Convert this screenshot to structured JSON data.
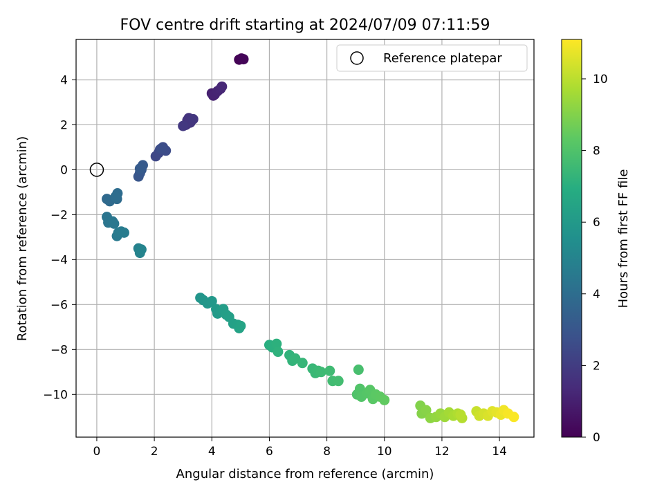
{
  "chart_data": {
    "type": "scatter",
    "title": "FOV centre drift starting at 2024/07/09 07:11:59",
    "xlabel": "Angular distance from reference (arcmin)",
    "ylabel": "Rotation from reference (arcmin)",
    "xlim": [
      -0.72,
      15.2
    ],
    "ylim": [
      -11.9,
      5.8
    ],
    "xticks": [
      "0",
      "2",
      "4",
      "6",
      "8",
      "10",
      "12",
      "14"
    ],
    "yticks": [
      "4",
      "2",
      "0",
      "−2",
      "−4",
      "−6",
      "−8",
      "−10"
    ],
    "grid": true,
    "legend": {
      "position": "top-right",
      "entries": [
        "Reference platepar"
      ]
    },
    "reference_point": {
      "x": 0,
      "y": 0
    },
    "colorbar": {
      "label": "Hours from first FF file",
      "range": [
        0,
        11.1
      ],
      "ticks": [
        "0",
        "2",
        "4",
        "6",
        "8",
        "10"
      ],
      "colormap": [
        "#440154",
        "#472c7a",
        "#3b518b",
        "#2c718e",
        "#21908d",
        "#27ad81",
        "#5cc863",
        "#aadc32",
        "#fde725"
      ]
    },
    "points": [
      {
        "x": 4.95,
        "y": 4.9,
        "h": 0.05
      },
      {
        "x": 5.03,
        "y": 4.95,
        "h": 0.1
      },
      {
        "x": 5.1,
        "y": 4.92,
        "h": 0.15
      },
      {
        "x": 4.0,
        "y": 3.4,
        "h": 1.0
      },
      {
        "x": 4.05,
        "y": 3.3,
        "h": 1.05
      },
      {
        "x": 4.1,
        "y": 3.35,
        "h": 1.1
      },
      {
        "x": 4.2,
        "y": 3.5,
        "h": 1.15
      },
      {
        "x": 4.3,
        "y": 3.6,
        "h": 1.2
      },
      {
        "x": 4.35,
        "y": 3.7,
        "h": 1.25
      },
      {
        "x": 3.1,
        "y": 2.0,
        "h": 1.6
      },
      {
        "x": 3.15,
        "y": 2.2,
        "h": 1.65
      },
      {
        "x": 3.2,
        "y": 2.3,
        "h": 1.7
      },
      {
        "x": 3.25,
        "y": 2.1,
        "h": 1.75
      },
      {
        "x": 3.35,
        "y": 2.25,
        "h": 1.8
      },
      {
        "x": 3.0,
        "y": 1.95,
        "h": 1.85
      },
      {
        "x": 2.05,
        "y": 0.6,
        "h": 2.4
      },
      {
        "x": 2.15,
        "y": 0.75,
        "h": 2.45
      },
      {
        "x": 2.2,
        "y": 0.9,
        "h": 2.5
      },
      {
        "x": 2.3,
        "y": 1.0,
        "h": 2.55
      },
      {
        "x": 2.4,
        "y": 0.85,
        "h": 2.6
      },
      {
        "x": 2.25,
        "y": 0.95,
        "h": 2.65
      },
      {
        "x": 1.45,
        "y": -0.3,
        "h": 3.0
      },
      {
        "x": 1.5,
        "y": -0.15,
        "h": 3.05
      },
      {
        "x": 1.55,
        "y": 0.0,
        "h": 3.1
      },
      {
        "x": 1.6,
        "y": 0.2,
        "h": 3.15
      },
      {
        "x": 1.5,
        "y": 0.05,
        "h": 3.2
      },
      {
        "x": 0.35,
        "y": -1.3,
        "h": 3.8
      },
      {
        "x": 0.45,
        "y": -1.4,
        "h": 3.85
      },
      {
        "x": 0.7,
        "y": -1.3,
        "h": 3.9
      },
      {
        "x": 0.72,
        "y": -1.05,
        "h": 3.95
      },
      {
        "x": 0.65,
        "y": -1.2,
        "h": 4.0
      },
      {
        "x": 0.35,
        "y": -2.1,
        "h": 4.3
      },
      {
        "x": 0.4,
        "y": -2.35,
        "h": 4.35
      },
      {
        "x": 0.55,
        "y": -2.3,
        "h": 4.4
      },
      {
        "x": 0.6,
        "y": -2.4,
        "h": 4.45
      },
      {
        "x": 0.7,
        "y": -2.95,
        "h": 4.5
      },
      {
        "x": 0.75,
        "y": -2.8,
        "h": 4.55
      },
      {
        "x": 0.85,
        "y": -2.75,
        "h": 4.6
      },
      {
        "x": 0.95,
        "y": -2.8,
        "h": 4.65
      },
      {
        "x": 1.45,
        "y": -3.5,
        "h": 4.9
      },
      {
        "x": 1.5,
        "y": -3.7,
        "h": 4.95
      },
      {
        "x": 1.55,
        "y": -3.55,
        "h": 5.0
      },
      {
        "x": 3.6,
        "y": -5.7,
        "h": 5.8
      },
      {
        "x": 3.7,
        "y": -5.8,
        "h": 5.85
      },
      {
        "x": 3.85,
        "y": -5.95,
        "h": 5.9
      },
      {
        "x": 4.0,
        "y": -5.85,
        "h": 5.95
      },
      {
        "x": 4.15,
        "y": -6.2,
        "h": 6.0
      },
      {
        "x": 4.2,
        "y": -6.4,
        "h": 6.05
      },
      {
        "x": 4.3,
        "y": -6.3,
        "h": 6.1
      },
      {
        "x": 4.4,
        "y": -6.2,
        "h": 6.15
      },
      {
        "x": 4.5,
        "y": -6.45,
        "h": 6.2
      },
      {
        "x": 4.6,
        "y": -6.55,
        "h": 6.25
      },
      {
        "x": 4.75,
        "y": -6.85,
        "h": 6.3
      },
      {
        "x": 4.9,
        "y": -6.9,
        "h": 6.35
      },
      {
        "x": 4.95,
        "y": -7.05,
        "h": 6.4
      },
      {
        "x": 5.0,
        "y": -6.95,
        "h": 6.45
      },
      {
        "x": 6.0,
        "y": -7.8,
        "h": 7.0
      },
      {
        "x": 6.1,
        "y": -7.9,
        "h": 7.05
      },
      {
        "x": 6.25,
        "y": -7.75,
        "h": 7.1
      },
      {
        "x": 6.3,
        "y": -8.1,
        "h": 7.15
      },
      {
        "x": 6.7,
        "y": -8.25,
        "h": 7.2
      },
      {
        "x": 6.8,
        "y": -8.5,
        "h": 7.25
      },
      {
        "x": 6.9,
        "y": -8.4,
        "h": 7.3
      },
      {
        "x": 7.15,
        "y": -8.6,
        "h": 7.35
      },
      {
        "x": 7.5,
        "y": -8.85,
        "h": 7.4
      },
      {
        "x": 7.6,
        "y": -9.05,
        "h": 7.45
      },
      {
        "x": 7.7,
        "y": -8.95,
        "h": 7.5
      },
      {
        "x": 7.8,
        "y": -9.0,
        "h": 7.55
      },
      {
        "x": 8.1,
        "y": -8.95,
        "h": 7.6
      },
      {
        "x": 8.2,
        "y": -9.4,
        "h": 7.65
      },
      {
        "x": 8.4,
        "y": -9.4,
        "h": 7.7
      },
      {
        "x": 9.1,
        "y": -8.9,
        "h": 7.8
      },
      {
        "x": 9.05,
        "y": -10.0,
        "h": 8.0
      },
      {
        "x": 9.15,
        "y": -9.75,
        "h": 8.05
      },
      {
        "x": 9.2,
        "y": -10.1,
        "h": 8.1
      },
      {
        "x": 9.4,
        "y": -9.95,
        "h": 8.15
      },
      {
        "x": 9.5,
        "y": -9.8,
        "h": 8.2
      },
      {
        "x": 9.6,
        "y": -10.2,
        "h": 8.25
      },
      {
        "x": 9.7,
        "y": -10.0,
        "h": 8.3
      },
      {
        "x": 9.85,
        "y": -10.1,
        "h": 8.35
      },
      {
        "x": 10.0,
        "y": -10.25,
        "h": 8.4
      },
      {
        "x": 11.25,
        "y": -10.5,
        "h": 9.0
      },
      {
        "x": 11.3,
        "y": -10.85,
        "h": 9.05
      },
      {
        "x": 11.45,
        "y": -10.7,
        "h": 9.1
      },
      {
        "x": 11.6,
        "y": -11.05,
        "h": 9.2
      },
      {
        "x": 11.8,
        "y": -11.0,
        "h": 9.3
      },
      {
        "x": 11.95,
        "y": -10.85,
        "h": 9.4
      },
      {
        "x": 12.1,
        "y": -11.0,
        "h": 9.5
      },
      {
        "x": 12.25,
        "y": -10.8,
        "h": 9.6
      },
      {
        "x": 12.4,
        "y": -10.95,
        "h": 9.7
      },
      {
        "x": 12.55,
        "y": -10.85,
        "h": 9.8
      },
      {
        "x": 12.7,
        "y": -11.05,
        "h": 9.9
      },
      {
        "x": 12.65,
        "y": -10.9,
        "h": 9.95
      },
      {
        "x": 13.2,
        "y": -10.75,
        "h": 10.2
      },
      {
        "x": 13.3,
        "y": -10.95,
        "h": 10.3
      },
      {
        "x": 13.45,
        "y": -10.85,
        "h": 10.4
      },
      {
        "x": 13.6,
        "y": -10.95,
        "h": 10.5
      },
      {
        "x": 13.75,
        "y": -10.75,
        "h": 10.6
      },
      {
        "x": 13.9,
        "y": -10.8,
        "h": 10.7
      },
      {
        "x": 14.05,
        "y": -10.9,
        "h": 10.8
      },
      {
        "x": 14.15,
        "y": -10.7,
        "h": 10.9
      },
      {
        "x": 14.3,
        "y": -10.85,
        "h": 11.0
      },
      {
        "x": 14.5,
        "y": -11.0,
        "h": 11.05
      }
    ]
  }
}
